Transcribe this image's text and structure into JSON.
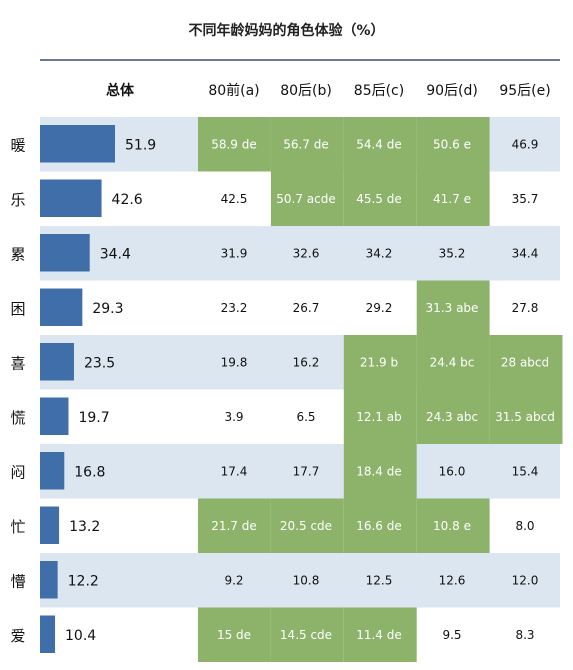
{
  "chart_data": {
    "type": "table",
    "title": "不同年龄妈妈的角色体验（%）",
    "total_header": "总体",
    "columns": [
      "80前(a)",
      "80后(b)",
      "85后(c)",
      "90后(d)",
      "95后(e)"
    ],
    "colors": {
      "bar": "#3f6ea8",
      "highlight": "#8db36b",
      "band": "#dce6f0",
      "header_rule": "#3a4f7a"
    },
    "rows": [
      {
        "label": "暖",
        "total": 51.9,
        "cells": [
          "58.9 de",
          "56.7 de",
          "54.4 de",
          "50.6 e",
          "46.9"
        ],
        "highlight": [
          true,
          true,
          true,
          true,
          false
        ]
      },
      {
        "label": "乐",
        "total": 42.6,
        "cells": [
          "42.5",
          "50.7 acde",
          "45.5 de",
          "41.7 e",
          "35.7"
        ],
        "highlight": [
          false,
          true,
          true,
          true,
          false
        ]
      },
      {
        "label": "累",
        "total": 34.4,
        "cells": [
          "31.9",
          "32.6",
          "34.2",
          "35.2",
          "34.4"
        ],
        "highlight": [
          false,
          false,
          false,
          false,
          false
        ]
      },
      {
        "label": "困",
        "total": 29.3,
        "cells": [
          "23.2",
          "26.7",
          "29.2",
          "31.3 abe",
          "27.8"
        ],
        "highlight": [
          false,
          false,
          false,
          true,
          false
        ]
      },
      {
        "label": "喜",
        "total": 23.5,
        "cells": [
          "19.8",
          "16.2",
          "21.9 b",
          "24.4 bc",
          "28 abcd"
        ],
        "highlight": [
          false,
          false,
          true,
          true,
          true
        ]
      },
      {
        "label": "慌",
        "total": 19.7,
        "cells": [
          "3.9",
          "6.5",
          "12.1 ab",
          "24.3 abc",
          "31.5 abcd"
        ],
        "highlight": [
          false,
          false,
          true,
          true,
          true
        ]
      },
      {
        "label": "闷",
        "total": 16.8,
        "cells": [
          "17.4",
          "17.7",
          "18.4 de",
          "16.0",
          "15.4"
        ],
        "highlight": [
          false,
          false,
          true,
          false,
          false
        ]
      },
      {
        "label": "忙",
        "total": 13.2,
        "cells": [
          "21.7 de",
          "20.5 cde",
          "16.6 de",
          "10.8 e",
          "8.0"
        ],
        "highlight": [
          true,
          true,
          true,
          true,
          false
        ]
      },
      {
        "label": "懵",
        "total": 12.2,
        "cells": [
          "9.2",
          "10.8",
          "12.5",
          "12.6",
          "12.0"
        ],
        "highlight": [
          false,
          false,
          false,
          false,
          false
        ]
      },
      {
        "label": "爱",
        "total": 10.4,
        "cells": [
          "15 de",
          "14.5 cde",
          "11.4 de",
          "9.5",
          "8.3"
        ],
        "highlight": [
          true,
          true,
          true,
          false,
          false
        ]
      }
    ]
  }
}
